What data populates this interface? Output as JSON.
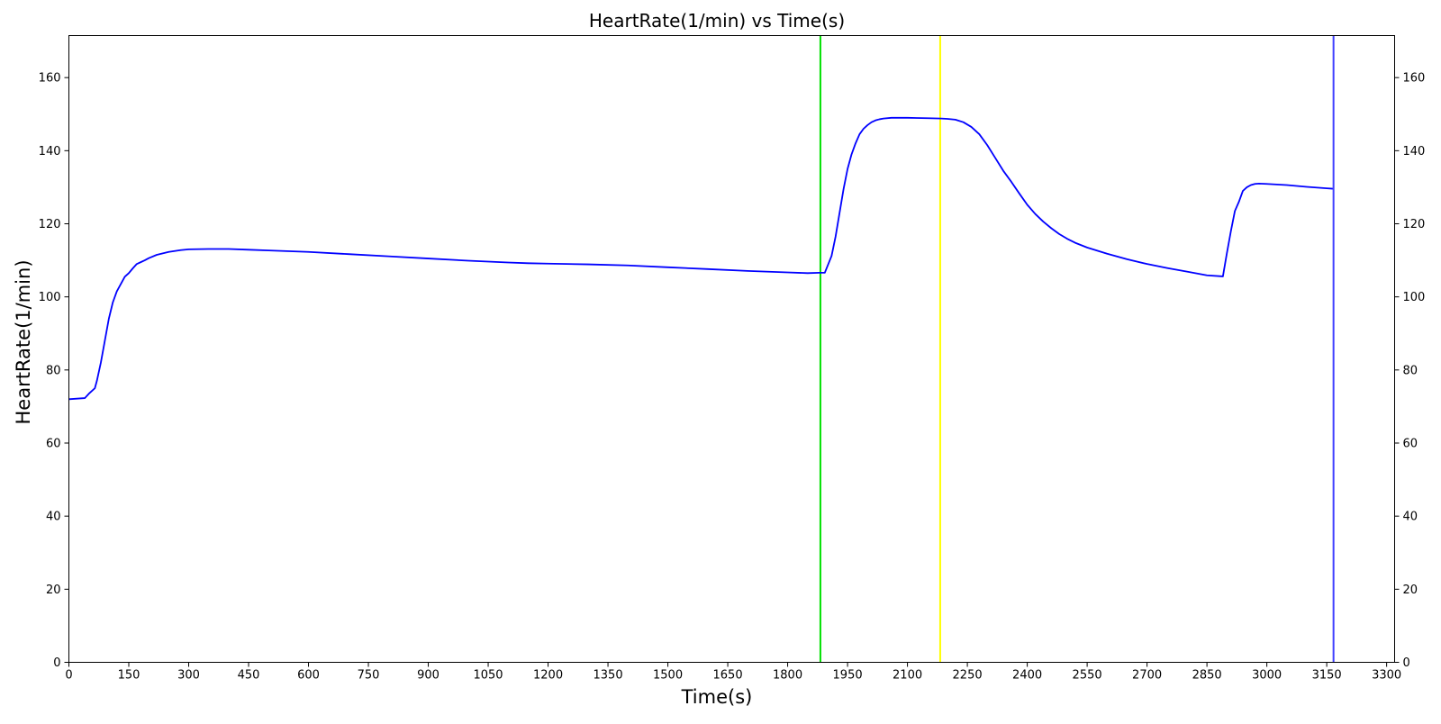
{
  "chart_data": {
    "type": "line",
    "title": "HeartRate(1/min) vs Time(s)",
    "xlabel": "Time(s)",
    "ylabel": "HeartRate(1/min)",
    "xlim": [
      0,
      3320
    ],
    "ylim": [
      0,
      171.5
    ],
    "xticks": [
      0,
      150,
      300,
      450,
      600,
      750,
      900,
      1050,
      1200,
      1350,
      1500,
      1650,
      1800,
      1950,
      2100,
      2250,
      2400,
      2550,
      2700,
      2850,
      3000,
      3150,
      3300
    ],
    "yticks": [
      0,
      20,
      40,
      60,
      80,
      100,
      120,
      140,
      160
    ],
    "right_axis_mirrored": true,
    "grid": false,
    "series": [
      {
        "color": "#0000ff",
        "x": [
          0,
          40,
          50,
          55,
          65,
          70,
          80,
          90,
          100,
          110,
          120,
          130,
          140,
          150,
          160,
          170,
          180,
          190,
          200,
          220,
          250,
          280,
          300,
          350,
          400,
          450,
          500,
          600,
          700,
          800,
          900,
          1000,
          1100,
          1150,
          1200,
          1300,
          1400,
          1500,
          1600,
          1700,
          1800,
          1850,
          1880,
          1893,
          1900,
          1910,
          1920,
          1930,
          1940,
          1950,
          1960,
          1970,
          1980,
          1990,
          2000,
          2010,
          2020,
          2030,
          2040,
          2060,
          2080,
          2100,
          2150,
          2185,
          2200,
          2220,
          2240,
          2260,
          2280,
          2300,
          2320,
          2340,
          2360,
          2380,
          2400,
          2420,
          2440,
          2460,
          2480,
          2500,
          2520,
          2550,
          2600,
          2650,
          2700,
          2750,
          2800,
          2850,
          2890,
          2900,
          2910,
          2920,
          2930,
          2940,
          2950,
          2960,
          2970,
          2980,
          3000,
          3050,
          3100,
          3150,
          3165
        ],
        "y": [
          72,
          72.3,
          73.5,
          74,
          75,
          77,
          82,
          88,
          94,
          98.5,
          101.5,
          103.5,
          105.5,
          106.5,
          107.8,
          109,
          109.5,
          110,
          110.6,
          111.5,
          112.3,
          112.8,
          113,
          113.1,
          113.1,
          112.9,
          112.7,
          112.3,
          111.7,
          111.1,
          110.5,
          109.9,
          109.4,
          109.2,
          109.1,
          108.9,
          108.6,
          108.1,
          107.6,
          107.1,
          106.7,
          106.5,
          106.6,
          106.6,
          108.5,
          111.2,
          116.5,
          123,
          129.5,
          135,
          139,
          142,
          144.5,
          146,
          147,
          147.8,
          148.3,
          148.6,
          148.8,
          149,
          149,
          149,
          148.9,
          148.8,
          148.7,
          148.5,
          147.8,
          146.5,
          144.5,
          141.5,
          138,
          134.5,
          131.5,
          128.3,
          125.2,
          122.7,
          120.6,
          118.8,
          117.2,
          115.9,
          114.8,
          113.5,
          111.8,
          110.3,
          109,
          107.9,
          106.9,
          105.9,
          105.6,
          112,
          118,
          123.5,
          126,
          129,
          130,
          130.6,
          130.9,
          131,
          130.9,
          130.6,
          130.1,
          129.7,
          129.6
        ]
      }
    ],
    "vertical_lines": [
      {
        "x": 1882,
        "color": "#00e000"
      },
      {
        "x": 2182,
        "color": "#ffff00"
      },
      {
        "x": 3167,
        "color": "#4040ff"
      }
    ]
  }
}
